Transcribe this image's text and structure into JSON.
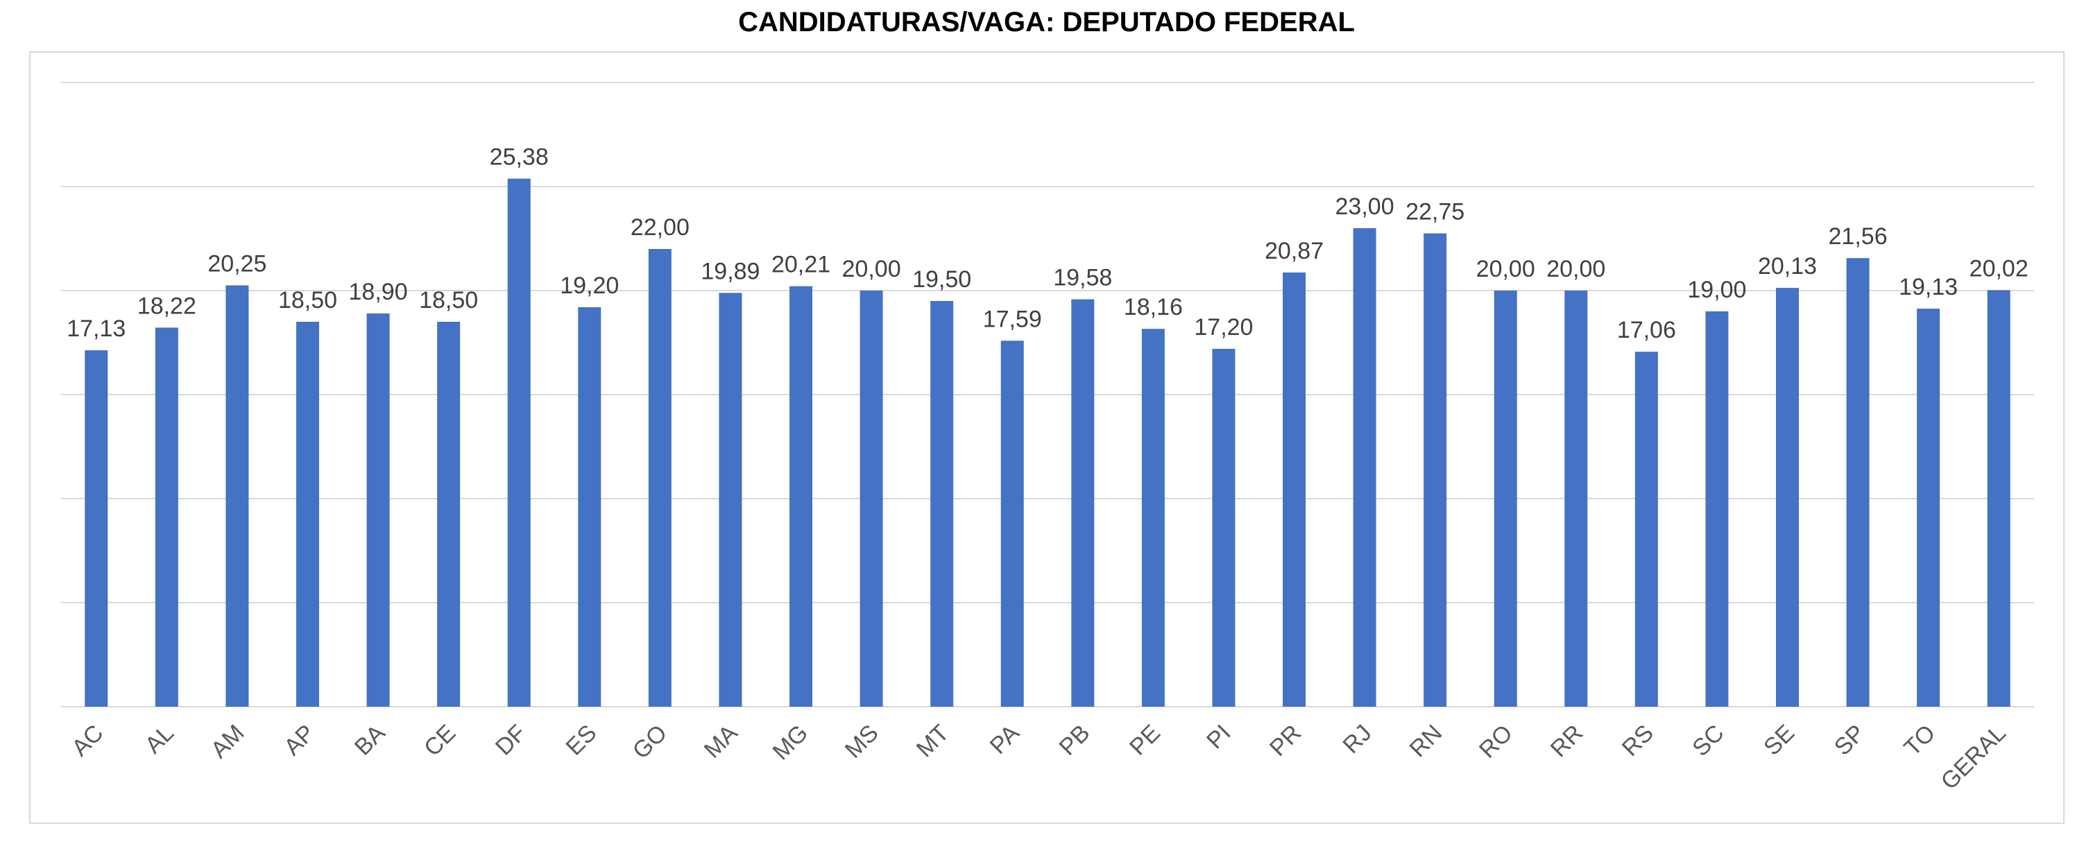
{
  "chart_data": {
    "type": "bar",
    "title": "CANDIDATURAS/VAGA: DEPUTADO FEDERAL",
    "xlabel": "",
    "ylabel": "",
    "categories": [
      "AC",
      "AL",
      "AM",
      "AP",
      "BA",
      "CE",
      "DF",
      "ES",
      "GO",
      "MA",
      "MG",
      "MS",
      "MT",
      "PA",
      "PB",
      "PE",
      "PI",
      "PR",
      "RJ",
      "RN",
      "RO",
      "RR",
      "RS",
      "SC",
      "SE",
      "SP",
      "TO",
      "GERAL"
    ],
    "values": [
      17.13,
      18.22,
      20.25,
      18.5,
      18.9,
      18.5,
      25.38,
      19.2,
      22.0,
      19.89,
      20.21,
      20.0,
      19.5,
      17.59,
      19.58,
      18.16,
      17.2,
      20.87,
      23.0,
      22.75,
      20.0,
      20.0,
      17.06,
      19.0,
      20.13,
      21.56,
      19.13,
      20.02
    ],
    "value_labels": [
      "17,13",
      "18,22",
      "20,25",
      "18,50",
      "18,90",
      "18,50",
      "25,38",
      "19,20",
      "22,00",
      "19,89",
      "20,21",
      "20,00",
      "19,50",
      "17,59",
      "19,58",
      "18,16",
      "17,20",
      "20,87",
      "23,00",
      "22,75",
      "20,00",
      "20,00",
      "17,06",
      "19,00",
      "20,13",
      "21,56",
      "19,13",
      "20,02"
    ],
    "ylim": [
      0,
      30
    ],
    "gridlines": [
      0,
      5,
      10,
      15,
      20,
      25,
      30
    ],
    "grid": true,
    "legend": "none",
    "bar_color": "#4472c4",
    "grid_color": "#d9d9d9"
  }
}
